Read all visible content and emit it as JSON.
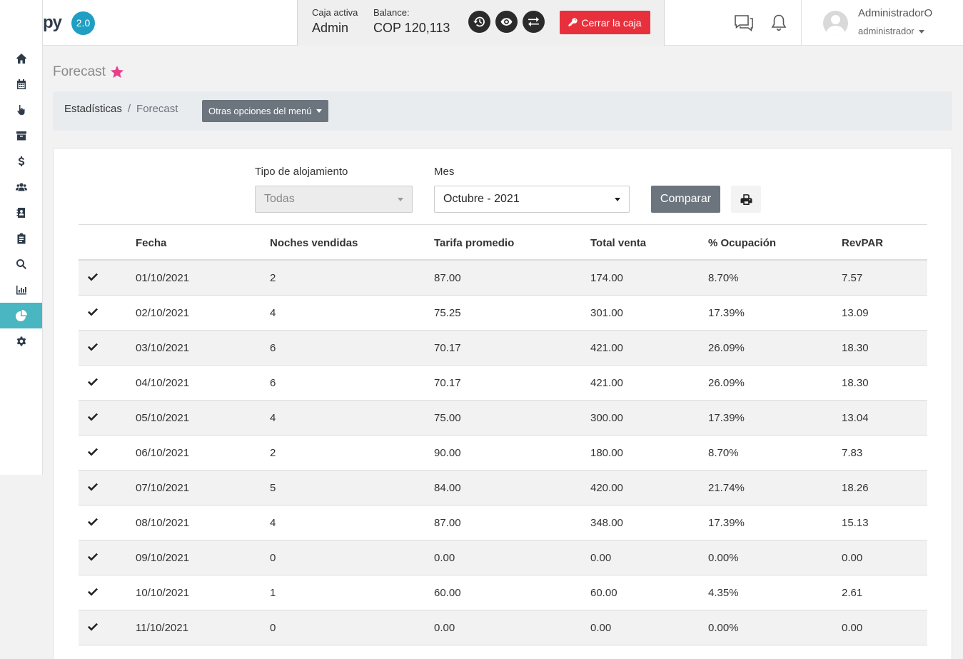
{
  "app": {
    "logo_text": "py",
    "version": "2.0"
  },
  "sidebar": {
    "items": [
      {
        "name": "home-icon",
        "active": false
      },
      {
        "name": "calendar-icon",
        "active": false
      },
      {
        "name": "pointer-hand-icon",
        "active": false
      },
      {
        "name": "archive-icon",
        "active": false
      },
      {
        "name": "dollar-icon",
        "active": false
      },
      {
        "name": "users-icon",
        "active": false
      },
      {
        "name": "address-book-icon",
        "active": false
      },
      {
        "name": "clipboard-icon",
        "active": false
      },
      {
        "name": "search-icon",
        "active": false
      },
      {
        "name": "bar-chart-icon",
        "active": false
      },
      {
        "name": "pie-chart-icon",
        "active": true
      },
      {
        "name": "gear-icon",
        "active": false
      }
    ],
    "active_color": "#4ab6c2"
  },
  "caja": {
    "active_label": "Caja activa",
    "active_value": "Admin",
    "balance_label": "Balance:",
    "balance_value": "COP 120,113",
    "close_label": "Cerrar la caja",
    "close_color": "#e8303d"
  },
  "user": {
    "name": "AdministradorO",
    "role": "administrador"
  },
  "page": {
    "title": "Forecast"
  },
  "breadcrumb": {
    "parent": "Estadísticas",
    "separator": "/",
    "current": "Forecast",
    "menu_label": "Otras opciones del menú"
  },
  "filters": {
    "tipo_label": "Tipo de alojamiento",
    "tipo_value": "Todas",
    "mes_label": "Mes",
    "mes_value": "Octubre - 2021",
    "compare_label": "Comparar"
  },
  "table": {
    "headers": [
      "Fecha",
      "Noches vendidas",
      "Tarifa promedio",
      "Total venta",
      "% Ocupación",
      "RevPAR"
    ],
    "rows": [
      [
        "01/10/2021",
        "2",
        "87.00",
        "174.00",
        "8.70%",
        "7.57"
      ],
      [
        "02/10/2021",
        "4",
        "75.25",
        "301.00",
        "17.39%",
        "13.09"
      ],
      [
        "03/10/2021",
        "6",
        "70.17",
        "421.00",
        "26.09%",
        "18.30"
      ],
      [
        "04/10/2021",
        "6",
        "70.17",
        "421.00",
        "26.09%",
        "18.30"
      ],
      [
        "05/10/2021",
        "4",
        "75.00",
        "300.00",
        "17.39%",
        "13.04"
      ],
      [
        "06/10/2021",
        "2",
        "90.00",
        "180.00",
        "8.70%",
        "7.83"
      ],
      [
        "07/10/2021",
        "5",
        "84.00",
        "420.00",
        "21.74%",
        "18.26"
      ],
      [
        "08/10/2021",
        "4",
        "87.00",
        "348.00",
        "17.39%",
        "15.13"
      ],
      [
        "09/10/2021",
        "0",
        "0.00",
        "0.00",
        "0.00%",
        "0.00"
      ],
      [
        "10/10/2021",
        "1",
        "60.00",
        "60.00",
        "4.35%",
        "2.61"
      ],
      [
        "11/10/2021",
        "0",
        "0.00",
        "0.00",
        "0.00%",
        "0.00"
      ]
    ]
  }
}
